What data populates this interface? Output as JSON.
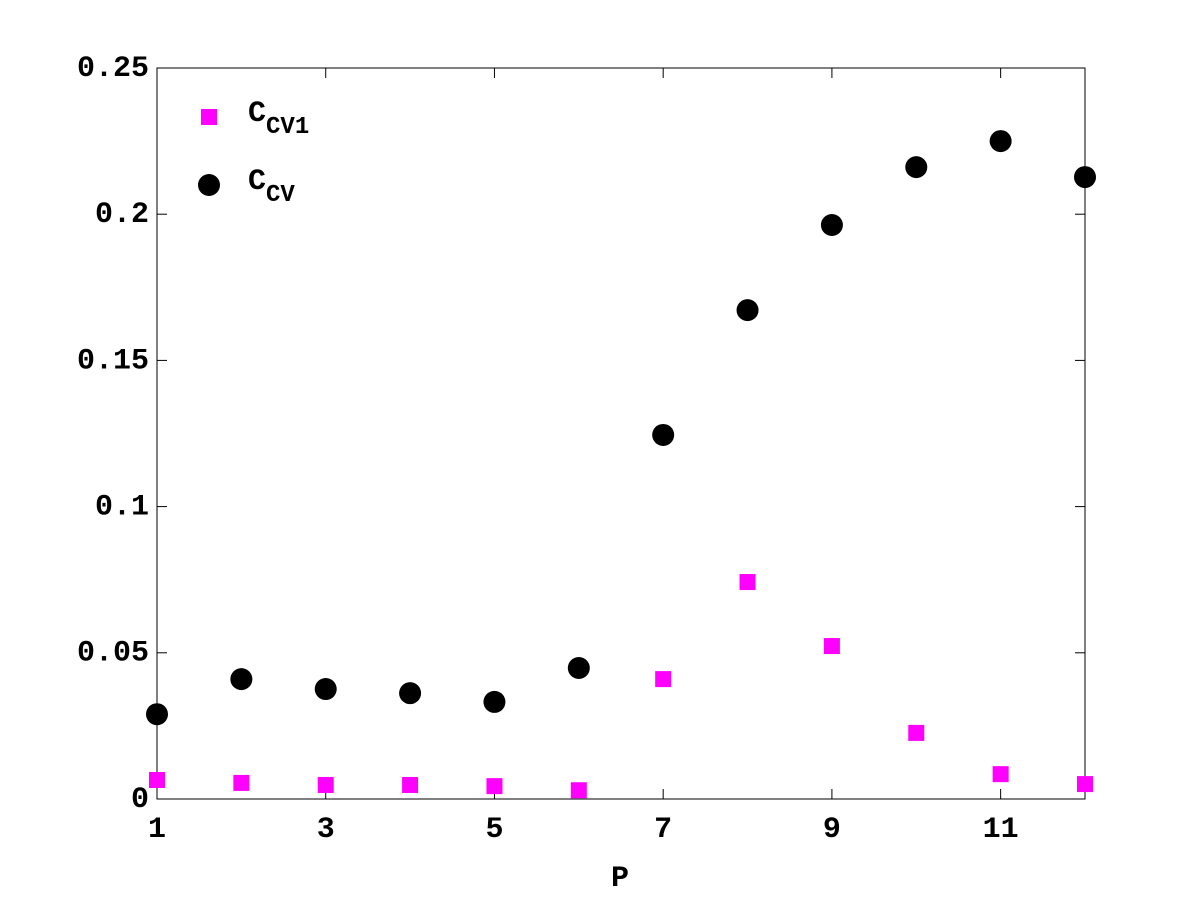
{
  "chart_data": {
    "type": "scatter",
    "x_label": "P",
    "x": [
      1,
      2,
      3,
      4,
      5,
      6,
      7,
      8,
      9,
      10,
      11,
      12
    ],
    "series": [
      {
        "name": "CCV1",
        "color": "#ff00ff",
        "marker": "square",
        "values": [
          0.0065,
          0.0055,
          0.0048,
          0.0048,
          0.0044,
          0.003,
          0.041,
          0.0742,
          0.0523,
          0.0226,
          0.0085,
          0.0051
        ]
      },
      {
        "name": "CCV",
        "color": "#000000",
        "marker": "circle",
        "values": [
          0.029,
          0.041,
          0.0376,
          0.0362,
          0.0332,
          0.0448,
          0.1245,
          0.1672,
          0.1963,
          0.2161,
          0.225,
          0.2127
        ]
      }
    ],
    "xlim": [
      1,
      12
    ],
    "xticks": [
      1,
      3,
      5,
      7,
      9,
      11
    ],
    "ylim": [
      0,
      0.25
    ],
    "yticks": [
      0,
      0.05,
      0.1,
      0.15,
      0.2,
      0.25
    ],
    "grid": false,
    "legend": "upper left"
  }
}
